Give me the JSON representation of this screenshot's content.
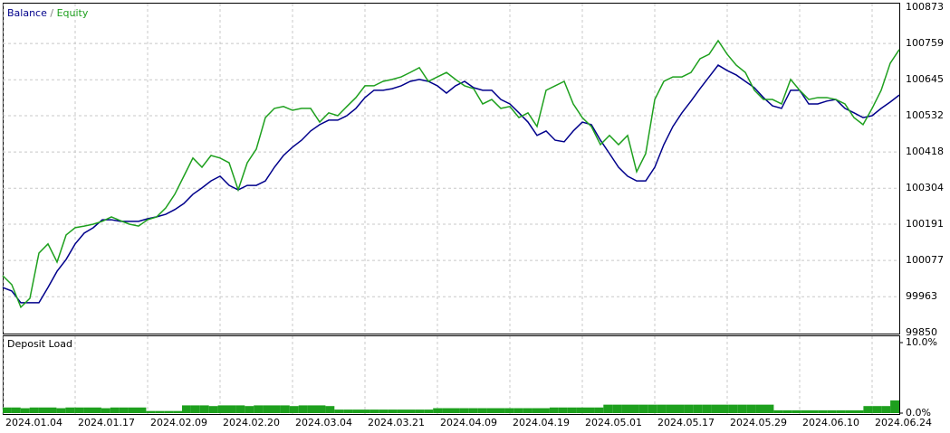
{
  "chart_data": [
    {
      "type": "line",
      "legend_separator": "/",
      "grid": true,
      "xlim": [
        0,
        99
      ],
      "ylim": [
        99850,
        100873
      ],
      "yticks": [
        99850,
        99963,
        100077,
        100191,
        100304,
        100418,
        100532,
        100645,
        100759,
        100873
      ],
      "series": [
        {
          "name": "Balance",
          "color": "#00008b",
          "values": [
            99992,
            99981,
            99944,
            99944,
            99944,
            99992,
            100043,
            100080,
            100129,
            100163,
            100180,
            100205,
            100205,
            100200,
            100200,
            100200,
            100208,
            100214,
            100222,
            100237,
            100256,
            100285,
            100305,
            100327,
            100342,
            100313,
            100299,
            100313,
            100313,
            100327,
            100370,
            100407,
            100433,
            100455,
            100484,
            100504,
            100518,
            100518,
            100532,
            100555,
            100589,
            100612,
            100612,
            100617,
            100626,
            100640,
            100646,
            100640,
            100626,
            100603,
            100626,
            100640,
            100620,
            100612,
            100612,
            100583,
            100569,
            100541,
            100512,
            100470,
            100484,
            100455,
            100450,
            100484,
            100512,
            100504,
            100455,
            100413,
            100370,
            100342,
            100327,
            100327,
            100370,
            100441,
            100498,
            100541,
            100578,
            100617,
            100654,
            100691,
            100674,
            100660,
            100640,
            100620,
            100589,
            100563,
            100555,
            100612,
            100612,
            100569,
            100569,
            100578,
            100583,
            100555,
            100541,
            100526,
            100532,
            100555,
            100575,
            100597
          ]
        },
        {
          "name": "Equity",
          "color": "#1ea01e",
          "values": [
            100029,
            100001,
            99930,
            99958,
            100100,
            100129,
            100072,
            100157,
            100180,
            100185,
            100191,
            100200,
            100214,
            100202,
            100191,
            100185,
            100205,
            100214,
            100242,
            100285,
            100342,
            100399,
            100370,
            100407,
            100399,
            100384,
            100299,
            100384,
            100427,
            100526,
            100555,
            100561,
            100549,
            100555,
            100555,
            100512,
            100541,
            100532,
            100561,
            100589,
            100626,
            100626,
            100640,
            100646,
            100654,
            100668,
            100683,
            100640,
            100654,
            100668,
            100646,
            100626,
            100617,
            100569,
            100583,
            100555,
            100561,
            100526,
            100541,
            100498,
            100612,
            100626,
            100640,
            100569,
            100526,
            100498,
            100441,
            100470,
            100441,
            100470,
            100356,
            100413,
            100583,
            100640,
            100654,
            100654,
            100668,
            100711,
            100725,
            100768,
            100725,
            100691,
            100668,
            100612,
            100583,
            100583,
            100569,
            100646,
            100612,
            100583,
            100589,
            100589,
            100583,
            100569,
            100526,
            100504,
            100555,
            100612,
            100697,
            100740
          ]
        }
      ]
    },
    {
      "type": "bar",
      "title": "Deposit Load",
      "color": "#1ea01e",
      "xlim": [
        0,
        99
      ],
      "ylim": [
        0,
        10
      ],
      "yticks": [
        {
          "value": 10,
          "label": "10.0%"
        },
        {
          "value": 0,
          "label": "0.0%"
        }
      ],
      "xticks": [
        {
          "value": 0,
          "label": "2024.01.04"
        },
        {
          "value": 8,
          "label": "2024.01.17"
        },
        {
          "value": 16,
          "label": "2024.02.09"
        },
        {
          "value": 24,
          "label": "2024.02.20"
        },
        {
          "value": 32,
          "label": "2024.03.04"
        },
        {
          "value": 40,
          "label": "2024.03.21"
        },
        {
          "value": 48,
          "label": "2024.04.09"
        },
        {
          "value": 56,
          "label": "2024.04.19"
        },
        {
          "value": 64,
          "label": "2024.05.01"
        },
        {
          "value": 72,
          "label": "2024.05.17"
        },
        {
          "value": 80,
          "label": "2024.05.29"
        },
        {
          "value": 88,
          "label": "2024.06.10"
        },
        {
          "value": 96,
          "label": "2024.06.24"
        }
      ],
      "values": [
        0.8,
        0.8,
        0.7,
        0.8,
        0.8,
        0.8,
        0.7,
        0.8,
        0.8,
        0.8,
        0.8,
        0.7,
        0.8,
        0.8,
        0.8,
        0.8,
        0.3,
        0.3,
        0.3,
        0.3,
        1.1,
        1.1,
        1.1,
        1.0,
        1.1,
        1.1,
        1.1,
        1.0,
        1.1,
        1.1,
        1.1,
        1.1,
        1.0,
        1.1,
        1.1,
        1.1,
        1.0,
        0.5,
        0.5,
        0.5,
        0.5,
        0.5,
        0.5,
        0.5,
        0.5,
        0.5,
        0.5,
        0.5,
        0.7,
        0.7,
        0.7,
        0.7,
        0.7,
        0.7,
        0.7,
        0.7,
        0.7,
        0.7,
        0.7,
        0.7,
        0.7,
        0.8,
        0.8,
        0.8,
        0.8,
        0.8,
        0.8,
        1.2,
        1.2,
        1.2,
        1.2,
        1.2,
        1.2,
        1.2,
        1.2,
        1.2,
        1.2,
        1.2,
        1.2,
        1.2,
        1.2,
        1.2,
        1.2,
        1.2,
        1.2,
        1.2,
        0.4,
        0.4,
        0.4,
        0.4,
        0.4,
        0.4,
        0.4,
        0.4,
        0.4,
        0.4,
        1.0,
        1.0,
        1.0,
        1.8
      ]
    }
  ]
}
